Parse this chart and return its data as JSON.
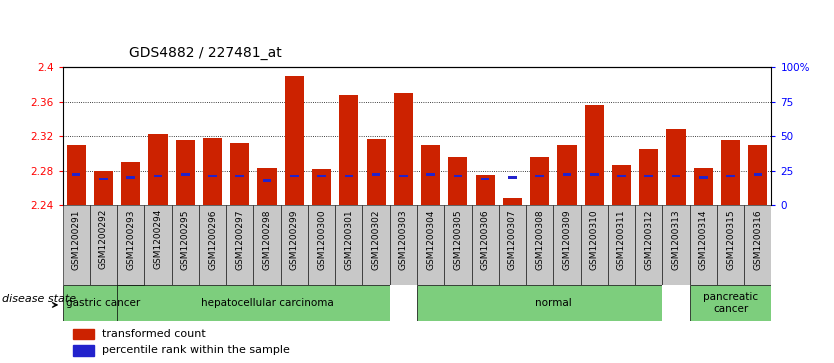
{
  "title": "GDS4882 / 227481_at",
  "samples": [
    "GSM1200291",
    "GSM1200292",
    "GSM1200293",
    "GSM1200294",
    "GSM1200295",
    "GSM1200296",
    "GSM1200297",
    "GSM1200298",
    "GSM1200299",
    "GSM1200300",
    "GSM1200301",
    "GSM1200302",
    "GSM1200303",
    "GSM1200304",
    "GSM1200305",
    "GSM1200306",
    "GSM1200307",
    "GSM1200308",
    "GSM1200309",
    "GSM1200310",
    "GSM1200311",
    "GSM1200312",
    "GSM1200313",
    "GSM1200314",
    "GSM1200315",
    "GSM1200316"
  ],
  "transformed_count": [
    2.31,
    2.28,
    2.29,
    2.322,
    2.315,
    2.318,
    2.312,
    2.283,
    2.39,
    2.282,
    2.368,
    2.317,
    2.37,
    2.31,
    2.296,
    2.275,
    2.248,
    2.296,
    2.31,
    2.356,
    2.287,
    2.305,
    2.328,
    2.283,
    2.315,
    2.31
  ],
  "percentile_rank": [
    22,
    19,
    20,
    21,
    22,
    21,
    21,
    18,
    21,
    21,
    21,
    22,
    21,
    22,
    21,
    19,
    20,
    21,
    22,
    22,
    21,
    21,
    21,
    20,
    21,
    22
  ],
  "groups": [
    {
      "label": "gastric cancer",
      "start": 0,
      "end": 2
    },
    {
      "label": "hepatocellular carcinoma",
      "start": 2,
      "end": 12
    },
    {
      "label": "",
      "start": 12,
      "end": 13
    },
    {
      "label": "normal",
      "start": 13,
      "end": 22
    },
    {
      "label": "",
      "start": 22,
      "end": 23
    },
    {
      "label": "pancreatic\ncancer",
      "start": 23,
      "end": 25
    }
  ],
  "ymin": 2.24,
  "ymax": 2.4,
  "yticks_left": [
    2.24,
    2.28,
    2.32,
    2.36,
    2.4
  ],
  "ytick_labels_left": [
    "2.24",
    "2.28",
    "2.32",
    "2.36",
    "2.4"
  ],
  "grid_yticks": [
    2.28,
    2.32,
    2.36
  ],
  "yticks_right_vals": [
    0,
    25,
    50,
    75,
    100
  ],
  "ytick_labels_right": [
    "0",
    "25",
    "50",
    "75",
    "100%"
  ],
  "bar_color": "#cc2200",
  "marker_color": "#2222cc",
  "bar_width": 0.7,
  "tick_area_color": "#c8c8c8",
  "group_bg_color": "#7dce7d",
  "group_gap_color": "#ffffff",
  "title_fontsize": 10,
  "tick_fontsize": 6.5,
  "label_fontsize": 8,
  "legend_fontsize": 8
}
